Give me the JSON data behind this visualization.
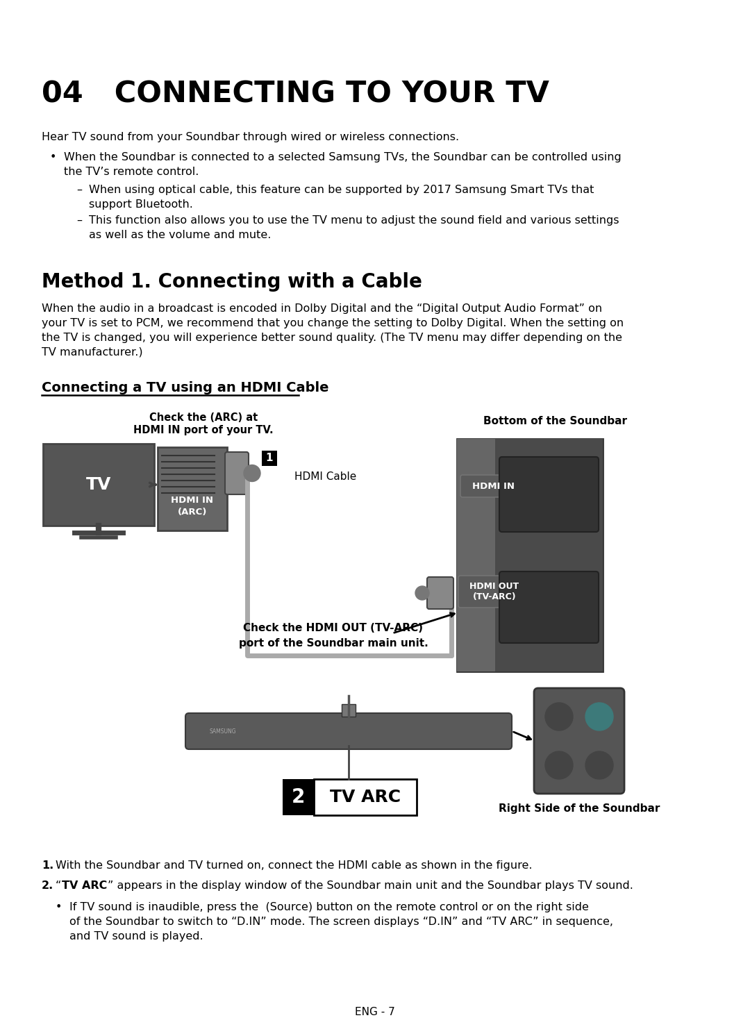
{
  "title": "04   CONNECTING TO YOUR TV",
  "bg_color": "#ffffff",
  "text_color": "#000000",
  "intro_text": "Hear TV sound from your Soundbar through wired or wireless connections.",
  "bullet1_line1": "When the Soundbar is connected to a selected Samsung TVs, the Soundbar can be controlled using",
  "bullet1_line2": "the TV’s remote control.",
  "sub1_line1": "When using optical cable, this feature can be supported by 2017 Samsung Smart TVs that",
  "sub1_line2": "support Bluetooth.",
  "sub2_line1": "This function also allows you to use the TV menu to adjust the sound field and various settings",
  "sub2_line2": "as well as the volume and mute.",
  "method_title": "Method 1. Connecting with a Cable",
  "method_body_line1": "When the audio in a broadcast is encoded in Dolby Digital and the “Digital Output Audio Format” on",
  "method_body_line2": "your TV is set to PCM, we recommend that you change the setting to Dolby Digital. When the setting on",
  "method_body_line3": "the TV is changed, you will experience better sound quality. (The TV menu may differ depending on the",
  "method_body_line4": "TV manufacturer.)",
  "hdmi_subtitle": "Connecting a TV using an HDMI Cable",
  "label_arc_line1": "Check the (ARC) at",
  "label_arc_line2": "HDMI IN port of your TV.",
  "label_bottom": "Bottom of the Soundbar",
  "label_hdmi_cable": "HDMI Cable",
  "label_hdmi_out_line1": "Check the HDMI OUT (TV-ARC)",
  "label_hdmi_out_line2": "port of the Soundbar main unit.",
  "label_right": "Right Side of the Soundbar",
  "step1": "With the Soundbar and TV turned on, connect the HDMI cable as shown in the figure.",
  "step2": "“TV ARC” appears in the display window of the Soundbar main unit and the Soundbar plays TV sound.",
  "step2_bullet_line1": "If TV sound is inaudible, press the  (Source) button on the remote control or on the right side",
  "step2_bullet_line2": "of the Soundbar to switch to “D.IN” mode. The screen displays “D.IN” and “TV ARC” in sequence,",
  "step2_bullet_line3": "and TV sound is played.",
  "page_num": "ENG - 7",
  "tv_color": "#555555",
  "connector_color": "#777777",
  "soundbar_panel_dark": "#444444",
  "soundbar_panel_light": "#666666",
  "remote_bg": "#555555",
  "remote_teal": "#3d7a7a",
  "bar_color": "#5a5a5a"
}
